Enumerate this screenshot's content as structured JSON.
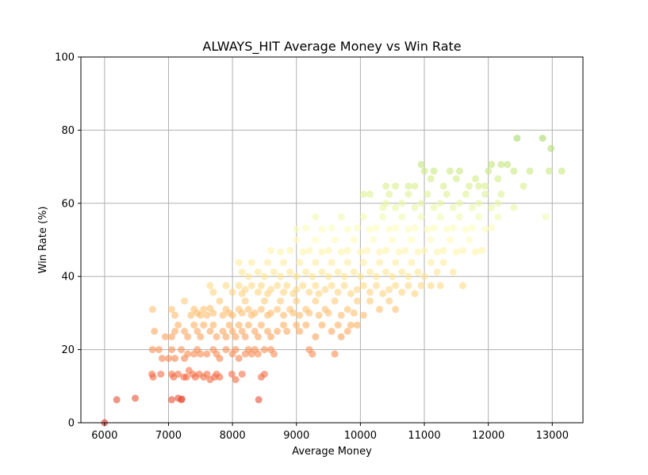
{
  "chart_data": {
    "type": "scatter",
    "title": "ALWAYS_HIT Average Money vs Win Rate",
    "xlabel": "Average Money",
    "ylabel": "Win Rate (%)",
    "xlim": [
      5630,
      13480
    ],
    "ylim": [
      0,
      100
    ],
    "xticks": [
      6000,
      7000,
      8000,
      9000,
      10000,
      11000,
      12000,
      13000
    ],
    "yticks": [
      0,
      20,
      40,
      60,
      80,
      100
    ],
    "grid": true,
    "colormap": [
      "#d73027",
      "#f46d43",
      "#fdae61",
      "#fee08b",
      "#ffffbf",
      "#d9ef8b",
      "#a6d96a"
    ],
    "marker_alpha": 0.6,
    "points": [
      [
        6000,
        0
      ],
      [
        6190,
        6.3
      ],
      [
        6480,
        6.7
      ],
      [
        7050,
        6.3
      ],
      [
        7150,
        6.7
      ],
      [
        7200,
        6.3
      ],
      [
        7210,
        6.5
      ],
      [
        8410,
        6.3
      ],
      [
        6740,
        13.3
      ],
      [
        6760,
        12.5
      ],
      [
        6880,
        13.3
      ],
      [
        7050,
        13.3
      ],
      [
        7080,
        12.5
      ],
      [
        7150,
        13.3
      ],
      [
        7240,
        12.5
      ],
      [
        7280,
        12.5
      ],
      [
        7320,
        14.3
      ],
      [
        7380,
        13.3
      ],
      [
        7420,
        12.5
      ],
      [
        7480,
        13.3
      ],
      [
        7550,
        12.5
      ],
      [
        7600,
        13.3
      ],
      [
        7650,
        11.8
      ],
      [
        7720,
        12.5
      ],
      [
        7750,
        13.3
      ],
      [
        7800,
        12.5
      ],
      [
        7990,
        13.3
      ],
      [
        8050,
        11.8
      ],
      [
        8150,
        13.3
      ],
      [
        8450,
        12.5
      ],
      [
        8500,
        13.3
      ],
      [
        6750,
        20
      ],
      [
        6850,
        20
      ],
      [
        6900,
        17.6
      ],
      [
        7000,
        17.6
      ],
      [
        7050,
        20
      ],
      [
        7100,
        17.6
      ],
      [
        7200,
        20
      ],
      [
        7250,
        17.6
      ],
      [
        7300,
        18.8
      ],
      [
        7400,
        18.8
      ],
      [
        7450,
        20
      ],
      [
        7500,
        18.8
      ],
      [
        7600,
        18.8
      ],
      [
        7700,
        20
      ],
      [
        7750,
        18.8
      ],
      [
        7800,
        17.6
      ],
      [
        7900,
        20
      ],
      [
        8000,
        18.8
      ],
      [
        8050,
        20
      ],
      [
        8100,
        17.6
      ],
      [
        8200,
        18.8
      ],
      [
        8250,
        20
      ],
      [
        8300,
        18.8
      ],
      [
        8350,
        20
      ],
      [
        8400,
        18.8
      ],
      [
        8500,
        20
      ],
      [
        8600,
        20
      ],
      [
        8650,
        18.8
      ],
      [
        9200,
        20
      ],
      [
        9250,
        18.8
      ],
      [
        9600,
        18.8
      ],
      [
        6780,
        25
      ],
      [
        6950,
        23.5
      ],
      [
        7050,
        23.5
      ],
      [
        7100,
        25
      ],
      [
        7150,
        26.7
      ],
      [
        7250,
        25
      ],
      [
        7300,
        23.5
      ],
      [
        7400,
        26.7
      ],
      [
        7450,
        25
      ],
      [
        7500,
        23.5
      ],
      [
        7550,
        26.7
      ],
      [
        7650,
        25
      ],
      [
        7700,
        26.7
      ],
      [
        7750,
        23.5
      ],
      [
        7850,
        25
      ],
      [
        7900,
        23.5
      ],
      [
        7950,
        26.7
      ],
      [
        8000,
        25
      ],
      [
        8050,
        23.5
      ],
      [
        8100,
        26.7
      ],
      [
        8150,
        25
      ],
      [
        8200,
        23.5
      ],
      [
        8250,
        26.7
      ],
      [
        8350,
        25
      ],
      [
        8400,
        23.5
      ],
      [
        8450,
        26.7
      ],
      [
        8550,
        25
      ],
      [
        8600,
        23.5
      ],
      [
        8700,
        25
      ],
      [
        8800,
        26.7
      ],
      [
        8850,
        25
      ],
      [
        9000,
        26.7
      ],
      [
        9050,
        25
      ],
      [
        9150,
        26.7
      ],
      [
        9300,
        23.5
      ],
      [
        9400,
        26.7
      ],
      [
        9550,
        25
      ],
      [
        9650,
        26.7
      ],
      [
        9700,
        23.5
      ],
      [
        9800,
        25
      ],
      [
        9850,
        26.7
      ],
      [
        9950,
        26.7
      ],
      [
        6750,
        31
      ],
      [
        7050,
        31
      ],
      [
        7100,
        29.4
      ],
      [
        7250,
        33.3
      ],
      [
        7350,
        29.4
      ],
      [
        7400,
        31
      ],
      [
        7450,
        30
      ],
      [
        7500,
        29.4
      ],
      [
        7550,
        31
      ],
      [
        7600,
        29.4
      ],
      [
        7650,
        31.3
      ],
      [
        7700,
        30
      ],
      [
        7800,
        33.3
      ],
      [
        7850,
        29.4
      ],
      [
        7900,
        31
      ],
      [
        7950,
        30
      ],
      [
        8000,
        29.4
      ],
      [
        8100,
        31
      ],
      [
        8150,
        30
      ],
      [
        8200,
        33.3
      ],
      [
        8250,
        31
      ],
      [
        8300,
        29.4
      ],
      [
        8350,
        30
      ],
      [
        8450,
        31
      ],
      [
        8500,
        33.3
      ],
      [
        8550,
        29.4
      ],
      [
        8600,
        30
      ],
      [
        8700,
        31
      ],
      [
        8750,
        33.3
      ],
      [
        8800,
        29.4
      ],
      [
        8900,
        31
      ],
      [
        8950,
        30
      ],
      [
        9000,
        33.3
      ],
      [
        9050,
        29.4
      ],
      [
        9150,
        31
      ],
      [
        9200,
        30
      ],
      [
        9300,
        33.3
      ],
      [
        9350,
        29.4
      ],
      [
        9450,
        31
      ],
      [
        9500,
        30
      ],
      [
        9600,
        33.3
      ],
      [
        9700,
        29.4
      ],
      [
        9800,
        31
      ],
      [
        9900,
        30
      ],
      [
        9950,
        33.3
      ],
      [
        10050,
        29.4
      ],
      [
        10150,
        33.3
      ],
      [
        10300,
        31
      ],
      [
        10450,
        33.3
      ],
      [
        10550,
        31
      ],
      [
        7650,
        37.5
      ],
      [
        7700,
        35.7
      ],
      [
        7900,
        37.5
      ],
      [
        8000,
        35.7
      ],
      [
        8100,
        37.5
      ],
      [
        8150,
        35.3
      ],
      [
        8200,
        36.4
      ],
      [
        8300,
        37.5
      ],
      [
        8400,
        35.7
      ],
      [
        8450,
        37.5
      ],
      [
        8550,
        35.3
      ],
      [
        8600,
        36.4
      ],
      [
        8700,
        37.5
      ],
      [
        8800,
        35.7
      ],
      [
        8850,
        37.5
      ],
      [
        8950,
        35.3
      ],
      [
        9000,
        36.4
      ],
      [
        9100,
        37.5
      ],
      [
        9200,
        35.7
      ],
      [
        9300,
        37.5
      ],
      [
        9350,
        35.3
      ],
      [
        9450,
        36.4
      ],
      [
        9550,
        37.5
      ],
      [
        9650,
        35.7
      ],
      [
        9750,
        37.5
      ],
      [
        9850,
        35.3
      ],
      [
        9950,
        36.4
      ],
      [
        10050,
        37.5
      ],
      [
        10150,
        35.7
      ],
      [
        10250,
        37.5
      ],
      [
        10350,
        35.3
      ],
      [
        10450,
        36.4
      ],
      [
        10550,
        37.5
      ],
      [
        10650,
        35.7
      ],
      [
        10750,
        37.5
      ],
      [
        10850,
        35.3
      ],
      [
        10950,
        37.5
      ],
      [
        11100,
        37.5
      ],
      [
        11250,
        37.5
      ],
      [
        11600,
        37.5
      ],
      [
        8100,
        43.8
      ],
      [
        8150,
        41.2
      ],
      [
        8250,
        40
      ],
      [
        8300,
        43.8
      ],
      [
        8400,
        41.2
      ],
      [
        8500,
        40
      ],
      [
        8550,
        43.8
      ],
      [
        8650,
        41.2
      ],
      [
        8750,
        40
      ],
      [
        8800,
        43.8
      ],
      [
        8900,
        41.2
      ],
      [
        9000,
        40
      ],
      [
        9050,
        43.8
      ],
      [
        9150,
        41.2
      ],
      [
        9250,
        40
      ],
      [
        9300,
        43.8
      ],
      [
        9400,
        41.2
      ],
      [
        9500,
        40
      ],
      [
        9550,
        43.8
      ],
      [
        9650,
        41.2
      ],
      [
        9750,
        40
      ],
      [
        9800,
        43.8
      ],
      [
        9900,
        41.2
      ],
      [
        10000,
        40
      ],
      [
        10050,
        43.8
      ],
      [
        10150,
        41.2
      ],
      [
        10250,
        40
      ],
      [
        10300,
        43.8
      ],
      [
        10400,
        41.2
      ],
      [
        10500,
        40
      ],
      [
        10550,
        43.8
      ],
      [
        10650,
        41.2
      ],
      [
        10750,
        40
      ],
      [
        10800,
        43.8
      ],
      [
        10900,
        41.2
      ],
      [
        11000,
        40
      ],
      [
        11100,
        43.8
      ],
      [
        11200,
        41.2
      ],
      [
        11300,
        43.8
      ],
      [
        11450,
        41.2
      ],
      [
        8600,
        47.1
      ],
      [
        8750,
        46.7
      ],
      [
        8900,
        47.1
      ],
      [
        9000,
        50
      ],
      [
        9100,
        46.7
      ],
      [
        9200,
        47.1
      ],
      [
        9300,
        50
      ],
      [
        9400,
        46.7
      ],
      [
        9500,
        47.1
      ],
      [
        9600,
        50
      ],
      [
        9700,
        46.7
      ],
      [
        9800,
        47.1
      ],
      [
        9900,
        50
      ],
      [
        10000,
        46.7
      ],
      [
        10100,
        47.1
      ],
      [
        10200,
        50
      ],
      [
        10300,
        46.7
      ],
      [
        10400,
        47.1
      ],
      [
        10500,
        50
      ],
      [
        10600,
        46.7
      ],
      [
        10700,
        47.1
      ],
      [
        10800,
        50
      ],
      [
        10900,
        46.7
      ],
      [
        11000,
        47.1
      ],
      [
        11100,
        50
      ],
      [
        11200,
        46.7
      ],
      [
        11300,
        47.1
      ],
      [
        11400,
        50
      ],
      [
        11500,
        46.7
      ],
      [
        11600,
        47.1
      ],
      [
        11700,
        50
      ],
      [
        11800,
        46.7
      ],
      [
        11900,
        47.1
      ],
      [
        9000,
        52.9
      ],
      [
        9150,
        53.3
      ],
      [
        9300,
        56.3
      ],
      [
        9400,
        52.9
      ],
      [
        9550,
        53.3
      ],
      [
        9700,
        56.3
      ],
      [
        9800,
        52.9
      ],
      [
        9950,
        53.3
      ],
      [
        10050,
        56.3
      ],
      [
        10150,
        52.9
      ],
      [
        10250,
        53.3
      ],
      [
        10350,
        56.3
      ],
      [
        10450,
        52.9
      ],
      [
        10550,
        53.3
      ],
      [
        10650,
        56.3
      ],
      [
        10750,
        52.9
      ],
      [
        10850,
        53.3
      ],
      [
        10950,
        56.3
      ],
      [
        11050,
        52.9
      ],
      [
        11150,
        53.3
      ],
      [
        11250,
        56.3
      ],
      [
        11350,
        52.9
      ],
      [
        11450,
        53.3
      ],
      [
        11550,
        56.3
      ],
      [
        11650,
        52.9
      ],
      [
        11750,
        53.3
      ],
      [
        11850,
        56.3
      ],
      [
        11950,
        52.9
      ],
      [
        12050,
        53.3
      ],
      [
        12150,
        56.3
      ],
      [
        12900,
        56.3
      ],
      [
        10050,
        62.5
      ],
      [
        10150,
        62.5
      ],
      [
        10350,
        58.8
      ],
      [
        10400,
        60
      ],
      [
        10450,
        62.5
      ],
      [
        10550,
        58.8
      ],
      [
        10650,
        60
      ],
      [
        10750,
        62.5
      ],
      [
        10850,
        58.8
      ],
      [
        10950,
        60
      ],
      [
        11050,
        62.5
      ],
      [
        11150,
        58.8
      ],
      [
        11250,
        60
      ],
      [
        11350,
        62.5
      ],
      [
        11450,
        58.8
      ],
      [
        11550,
        60
      ],
      [
        11650,
        62.5
      ],
      [
        11750,
        58.8
      ],
      [
        11850,
        60
      ],
      [
        11950,
        62.5
      ],
      [
        12050,
        58.8
      ],
      [
        12150,
        60
      ],
      [
        12200,
        62.5
      ],
      [
        12400,
        58.8
      ],
      [
        10400,
        64.7
      ],
      [
        10550,
        64.7
      ],
      [
        10750,
        64.7
      ],
      [
        10850,
        64.7
      ],
      [
        10950,
        70.6
      ],
      [
        11000,
        68.8
      ],
      [
        11100,
        66.7
      ],
      [
        11150,
        68.8
      ],
      [
        11300,
        64.7
      ],
      [
        11400,
        68.8
      ],
      [
        11500,
        66.7
      ],
      [
        11550,
        68.8
      ],
      [
        11700,
        64.7
      ],
      [
        11800,
        66.7
      ],
      [
        11850,
        64.7
      ],
      [
        11950,
        64.7
      ],
      [
        12000,
        68.8
      ],
      [
        12050,
        70.6
      ],
      [
        12150,
        66.7
      ],
      [
        12200,
        70.6
      ],
      [
        12300,
        70.6
      ],
      [
        12400,
        68.8
      ],
      [
        12550,
        64.7
      ],
      [
        12650,
        68.8
      ],
      [
        12950,
        68.8
      ],
      [
        13150,
        68.8
      ],
      [
        12450,
        77.8
      ],
      [
        12850,
        77.8
      ],
      [
        12980,
        75
      ]
    ]
  }
}
